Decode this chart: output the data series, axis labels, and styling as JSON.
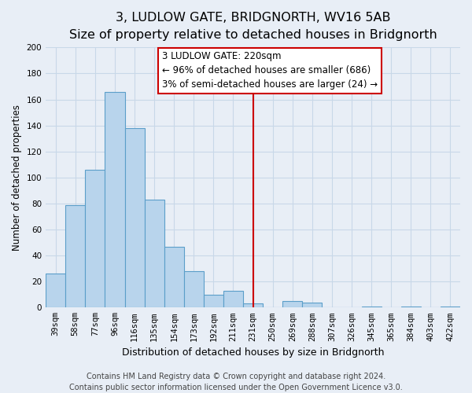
{
  "title": "3, LUDLOW GATE, BRIDGNORTH, WV16 5AB",
  "subtitle": "Size of property relative to detached houses in Bridgnorth",
  "xlabel": "Distribution of detached houses by size in Bridgnorth",
  "ylabel": "Number of detached properties",
  "bar_labels": [
    "39sqm",
    "58sqm",
    "77sqm",
    "96sqm",
    "116sqm",
    "135sqm",
    "154sqm",
    "173sqm",
    "192sqm",
    "211sqm",
    "231sqm",
    "250sqm",
    "269sqm",
    "288sqm",
    "307sqm",
    "326sqm",
    "345sqm",
    "365sqm",
    "384sqm",
    "403sqm",
    "422sqm"
  ],
  "bar_values": [
    26,
    79,
    106,
    166,
    138,
    83,
    47,
    28,
    10,
    13,
    3,
    0,
    5,
    4,
    0,
    0,
    1,
    0,
    1,
    0,
    1
  ],
  "bar_color": "#b8d4ec",
  "bar_edge_color": "#5b9ec9",
  "vline_x": 10.0,
  "vline_color": "#cc0000",
  "annotation_line1": "3 LUDLOW GATE: 220sqm",
  "annotation_line2": "← 96% of detached houses are smaller (686)",
  "annotation_line3": "3% of semi-detached houses are larger (24) →",
  "ylim": [
    0,
    200
  ],
  "yticks": [
    0,
    20,
    40,
    60,
    80,
    100,
    120,
    140,
    160,
    180,
    200
  ],
  "grid_color": "#c8d8e8",
  "background_color": "#e8eef6",
  "footer_line1": "Contains HM Land Registry data © Crown copyright and database right 2024.",
  "footer_line2": "Contains public sector information licensed under the Open Government Licence v3.0.",
  "title_fontsize": 11.5,
  "subtitle_fontsize": 9.5,
  "xlabel_fontsize": 9,
  "ylabel_fontsize": 8.5,
  "tick_fontsize": 7.5,
  "annotation_fontsize": 8.5,
  "footer_fontsize": 7
}
